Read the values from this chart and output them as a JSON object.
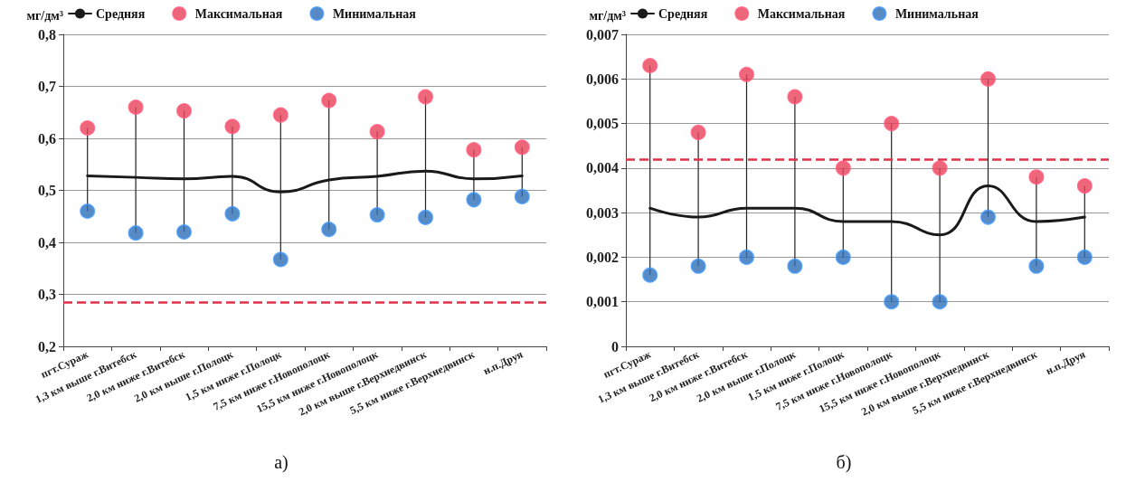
{
  "chart_data": [
    {
      "type": "line",
      "ylabel": "мг/дм³",
      "legend": "top",
      "grid": "y",
      "annotations": [
        "а)"
      ],
      "categories": [
        "пгт.Сураж",
        "1,3 км выше г.Витебск",
        "2,0 км ниже г.Витебск",
        "2,0 км выше г.Полоцк",
        "1,5 км ниже г.Полоцк",
        "7,5 км ниже г.Новополоцк",
        "15,5 км ниже г.Новополоцк",
        "2,0 км выше г.Верхнедвинск",
        "5,5 км ниже г.Верхнедвинск",
        "н.п.Друя"
      ],
      "ylim": [
        0.2,
        0.8
      ],
      "yticks": [
        {
          "value": 0.2,
          "label": "0,2"
        },
        {
          "value": 0.3,
          "label": "0,3"
        },
        {
          "value": 0.4,
          "label": "0,4"
        },
        {
          "value": 0.5,
          "label": "0,5"
        },
        {
          "value": 0.6,
          "label": "0,6"
        },
        {
          "value": 0.7,
          "label": "0,7"
        },
        {
          "value": 0.8,
          "label": "0,8"
        }
      ],
      "ref_lines": [
        {
          "axis": "y",
          "value": 0.285,
          "color": "#e0304a",
          "line_style": "dashed"
        }
      ],
      "series": [
        {
          "name": "Средняя",
          "color": "#1a1a1a",
          "marker": "none",
          "values": [
            0.528,
            0.525,
            0.522,
            0.527,
            0.497,
            0.52,
            0.527,
            0.537,
            0.522,
            0.528
          ]
        },
        {
          "name": "Максимальная",
          "type": "scatter",
          "color": "#e8415a",
          "marker": "circle",
          "values": [
            0.62,
            0.66,
            0.653,
            0.623,
            0.645,
            0.673,
            0.613,
            0.68,
            0.578,
            0.583
          ]
        },
        {
          "name": "Минимальная",
          "type": "scatter",
          "color": "#2e6db5",
          "marker": "circle",
          "values": [
            0.46,
            0.418,
            0.42,
            0.455,
            0.367,
            0.425,
            0.453,
            0.448,
            0.482,
            0.488
          ]
        }
      ]
    },
    {
      "type": "line",
      "ylabel": "мг/дм³",
      "legend": "top",
      "grid": "y",
      "annotations": [
        "б)"
      ],
      "categories": [
        "пгт.Сураж",
        "1,3 км выше г.Витебск",
        "2,0 км ниже г.Витебск",
        "2,0 км выше г.Полоцк",
        "1,5 км ниже г.Полоцк",
        "7,5 км ниже г.Новополоцк",
        "15,5 км ниже г.Новополоцк",
        "2,0 км выше г.Верхнедвинск",
        "5,5 км ниже г.Верхнедвинск",
        "н.п.Друя"
      ],
      "ylim": [
        0,
        0.007
      ],
      "yticks": [
        0,
        {
          "value": 0.001,
          "label": "0,001"
        },
        {
          "value": 0.002,
          "label": "0,002"
        },
        {
          "value": 0.003,
          "label": "0,003"
        },
        {
          "value": 0.004,
          "label": "0,004"
        },
        {
          "value": 0.005,
          "label": "0,005"
        },
        {
          "value": 0.006,
          "label": "0,006"
        },
        {
          "value": 0.007,
          "label": "0,007"
        }
      ],
      "ref_lines": [
        {
          "axis": "y",
          "value": 0.0042,
          "color": "#e0304a",
          "line_style": "dashed"
        }
      ],
      "series": [
        {
          "name": "Средняя",
          "color": "#1a1a1a",
          "marker": "none",
          "values": [
            0.0031,
            0.0029,
            0.0031,
            0.0031,
            0.0028,
            0.0028,
            0.0025,
            0.0036,
            0.0028,
            0.0029
          ]
        },
        {
          "name": "Максимальная",
          "type": "scatter",
          "color": "#e8415a",
          "marker": "circle",
          "values": [
            0.0063,
            0.0048,
            0.0061,
            0.0056,
            0.004,
            0.005,
            0.004,
            0.006,
            0.0038,
            0.0036
          ]
        },
        {
          "name": "Минимальная",
          "type": "scatter",
          "color": "#2e6db5",
          "marker": "circle",
          "values": [
            0.0016,
            0.0018,
            0.002,
            0.0018,
            0.002,
            0.001,
            0.001,
            0.0029,
            0.0018,
            0.002
          ]
        }
      ]
    }
  ]
}
